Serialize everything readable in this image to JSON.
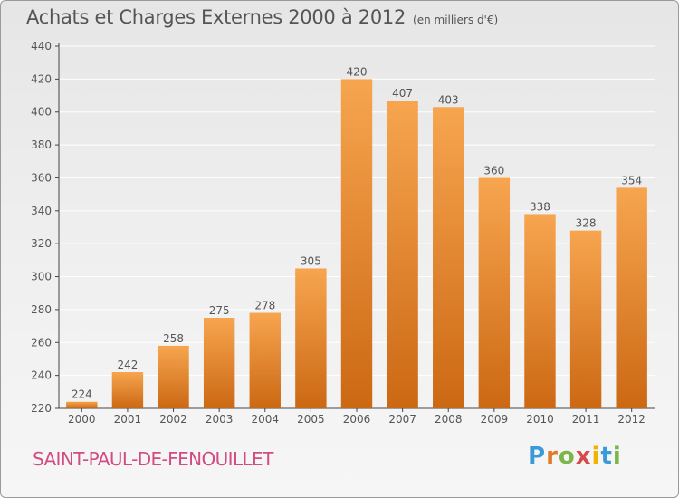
{
  "title": "Achats et Charges Externes 2000 à 2012",
  "subtitle": "(en milliers d'€)",
  "location": "SAINT-PAUL-DE-FENOUILLET",
  "logo": {
    "letters": [
      "P",
      "r",
      "o",
      "x",
      "i",
      "t",
      "i"
    ],
    "colors": [
      "#3a9ad9",
      "#e07b2a",
      "#7ab648",
      "#d64a4a",
      "#f0b400",
      "#3a9ad9",
      "#7ab648"
    ]
  },
  "colors": {
    "bar_top": "#f7a54f",
    "bar_bottom": "#cc6814",
    "grid": "#ffffff",
    "text": "#555555",
    "axis": "#444444"
  },
  "chart_data": {
    "type": "bar",
    "title": "Achats et Charges Externes 2000 à 2012",
    "subtitle": "(en milliers d'€)",
    "xlabel": "",
    "ylabel": "",
    "categories": [
      "2000",
      "2001",
      "2002",
      "2003",
      "2004",
      "2005",
      "2006",
      "2007",
      "2008",
      "2009",
      "2010",
      "2011",
      "2012"
    ],
    "values": [
      224,
      242,
      258,
      275,
      278,
      305,
      420,
      407,
      403,
      360,
      338,
      328,
      354
    ],
    "ylim": [
      220,
      440
    ],
    "yticks": [
      220,
      240,
      260,
      280,
      300,
      320,
      340,
      360,
      380,
      400,
      420,
      440
    ],
    "grid": true,
    "legend": "none"
  }
}
